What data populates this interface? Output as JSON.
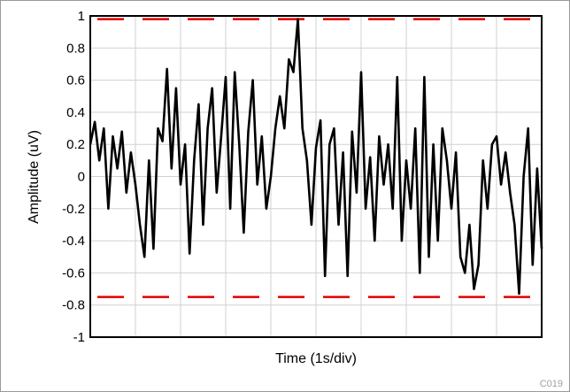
{
  "chart_data": {
    "type": "line",
    "title": "",
    "xlabel": "Time (1s/div)",
    "ylabel": "Amplitude (uV)",
    "ylim": [
      -1,
      1
    ],
    "yticks": [
      1,
      0.8,
      0.6,
      0.4,
      0.2,
      0,
      -0.2,
      -0.4,
      -0.6,
      -0.8,
      -1
    ],
    "ytick_labels": [
      "1",
      "0.8",
      "0.6",
      "0.4",
      "0.2",
      "0",
      "-0.2",
      "-0.4",
      "-0.6",
      "-0.8",
      "-1"
    ],
    "x_divisions": 10,
    "grid": true,
    "series": [
      {
        "color": "#000000",
        "x": [
          0,
          0.1,
          0.2,
          0.3,
          0.4,
          0.5,
          0.6,
          0.7,
          0.8,
          0.9,
          1.0,
          1.1,
          1.2,
          1.3,
          1.4,
          1.5,
          1.6,
          1.7,
          1.8,
          1.9,
          2.0,
          2.1,
          2.2,
          2.3,
          2.4,
          2.5,
          2.6,
          2.7,
          2.8,
          2.9,
          3.0,
          3.1,
          3.2,
          3.3,
          3.4,
          3.5,
          3.6,
          3.7,
          3.8,
          3.9,
          4.0,
          4.1,
          4.2,
          4.3,
          4.4,
          4.5,
          4.6,
          4.7,
          4.8,
          4.9,
          5.0,
          5.1,
          5.2,
          5.3,
          5.4,
          5.5,
          5.6,
          5.7,
          5.8,
          5.9,
          6.0,
          6.1,
          6.2,
          6.3,
          6.4,
          6.5,
          6.6,
          6.7,
          6.8,
          6.9,
          7.0,
          7.1,
          7.2,
          7.3,
          7.4,
          7.5,
          7.6,
          7.7,
          7.8,
          7.9,
          8.0,
          8.1,
          8.2,
          8.3,
          8.4,
          8.5,
          8.6,
          8.7,
          8.8,
          8.9,
          9.0,
          9.1,
          9.2,
          9.3,
          9.4,
          9.5,
          9.6,
          9.7,
          9.8,
          9.9,
          10.0
        ],
        "y": [
          0.2,
          0.34,
          0.1,
          0.3,
          -0.2,
          0.25,
          0.05,
          0.28,
          -0.1,
          0.15,
          -0.05,
          -0.3,
          -0.5,
          0.1,
          -0.45,
          0.3,
          0.22,
          0.67,
          0.05,
          0.55,
          -0.05,
          0.2,
          -0.48,
          0.1,
          0.45,
          -0.3,
          0.3,
          0.55,
          -0.1,
          0.25,
          0.62,
          -0.2,
          0.65,
          0.2,
          -0.35,
          0.28,
          0.6,
          -0.05,
          0.25,
          -0.2,
          0.0,
          0.3,
          0.5,
          0.3,
          0.73,
          0.65,
          0.98,
          0.3,
          0.1,
          -0.3,
          0.18,
          0.35,
          -0.62,
          0.2,
          0.3,
          -0.3,
          0.15,
          -0.62,
          0.28,
          -0.1,
          0.65,
          -0.2,
          0.12,
          -0.4,
          0.25,
          -0.05,
          0.2,
          -0.2,
          0.62,
          -0.4,
          0.1,
          -0.2,
          0.3,
          -0.6,
          0.62,
          -0.5,
          0.2,
          -0.4,
          0.3,
          0.1,
          -0.2,
          0.15,
          -0.5,
          -0.6,
          -0.3,
          -0.7,
          -0.55,
          0.1,
          -0.2,
          0.2,
          0.25,
          -0.05,
          0.15,
          -0.1,
          -0.3,
          -0.73,
          0.0,
          0.3,
          -0.55,
          0.05,
          -0.45
        ]
      }
    ],
    "reference_lines": [
      {
        "y": 0.98,
        "color": "#e00000",
        "style": "dashed"
      },
      {
        "y": -0.75,
        "color": "#e00000",
        "style": "dashed"
      }
    ]
  },
  "corner_code": "C019"
}
